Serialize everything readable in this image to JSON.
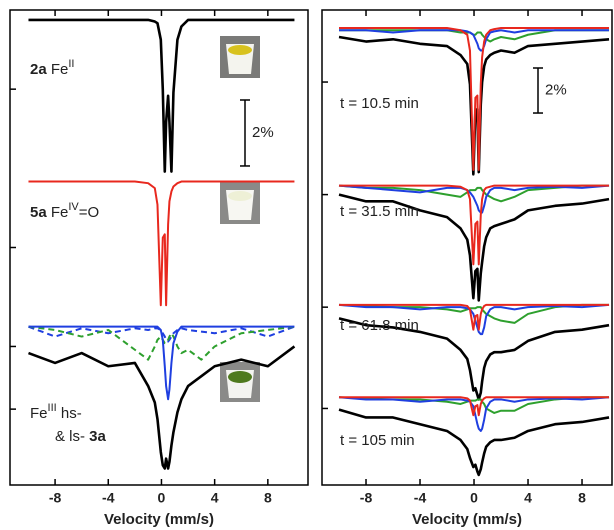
{
  "chart_data": [
    {
      "type": "line",
      "xlabel": "Velocity (mm/s)",
      "xlim": [
        -11.39,
        11.02
      ],
      "xticks": [
        -8,
        -4,
        0,
        4,
        8
      ],
      "ylim": [
        0,
        14.4
      ],
      "yticks": [
        12,
        7.2,
        4.2,
        2.3
      ],
      "x": [
        -10,
        -8,
        -6,
        -4,
        -2,
        -1,
        -0.5,
        -0.3,
        -0.05,
        0.1,
        0.25,
        0.35,
        0.5,
        0.6,
        0.75,
        0.9,
        1.2,
        1.5,
        2,
        3,
        4,
        6,
        8,
        10
      ],
      "series": [
        {
          "color": "#000000",
          "values": [
            14.1,
            14.1,
            14.1,
            14.1,
            14.1,
            14.1,
            14.05,
            14.0,
            13.5,
            12.0,
            9.5,
            11.0,
            11.8,
            11.0,
            9.5,
            11.9,
            13.5,
            13.9,
            14.1,
            14.1,
            14.1,
            14.1,
            14.1,
            14.1
          ]
        },
        {
          "color": "#e8281e",
          "values": [
            9.2,
            9.2,
            9.2,
            9.2,
            9.2,
            9.15,
            9.0,
            8.5,
            5.45,
            7.5,
            7.6,
            5.45,
            7.9,
            8.6,
            8.9,
            9.05,
            9.15,
            9.2,
            9.2,
            9.2,
            9.2,
            9.2,
            9.2,
            9.2
          ]
        },
        {
          "color": "#1f3fe0",
          "dash": true,
          "values": [
            4.8,
            4.5,
            4.75,
            4.6,
            4.75,
            4.7,
            4.75,
            4.75,
            4.7,
            4.6,
            4.5,
            4.4,
            4.35,
            4.4,
            4.5,
            4.6,
            4.7,
            4.75,
            4.7,
            4.65,
            4.6,
            4.75,
            4.5,
            4.8
          ]
        },
        {
          "color": "#2ea02e",
          "dash": true,
          "values": [
            4.8,
            4.7,
            4.5,
            4.7,
            4.1,
            3.8,
            4.2,
            4.4,
            4.5,
            4.4,
            4.3,
            4.3,
            4.4,
            4.5,
            4.6,
            4.5,
            4.2,
            4.0,
            4.1,
            3.8,
            4.2,
            4.6,
            4.7,
            4.8
          ]
        },
        {
          "color": "#1f3fe0",
          "values": [
            4.8,
            4.8,
            4.8,
            4.8,
            4.8,
            4.8,
            4.8,
            4.8,
            4.7,
            4.4,
            3.6,
            3.0,
            2.6,
            2.9,
            3.7,
            4.3,
            4.65,
            4.8,
            4.8,
            4.8,
            4.8,
            4.8,
            4.8,
            4.8
          ]
        },
        {
          "color": "#000000",
          "values": [
            4.0,
            3.7,
            4.0,
            3.6,
            3.7,
            3.0,
            2.5,
            2.0,
            1.0,
            0.6,
            0.5,
            0.8,
            0.5,
            0.7,
            1.2,
            1.6,
            2.2,
            2.6,
            3.0,
            3.3,
            3.6,
            3.8,
            3.6,
            4.2
          ]
        }
      ],
      "annotations": [
        [
          {
            "text": "2a",
            "style": "bold"
          },
          {
            "text": " Fe",
            "style": "normal"
          },
          {
            "text": "II",
            "style": "sup"
          }
        ],
        [
          {
            "text": "5a",
            "style": "bold"
          },
          {
            "text": " Fe",
            "style": "normal"
          },
          {
            "text": "IV",
            "style": "sup"
          },
          {
            "text": "=O",
            "style": "normal"
          }
        ],
        [
          {
            "text": "Fe",
            "style": "normal"
          },
          {
            "text": "III",
            "style": "sup"
          },
          {
            "text": " hs-",
            "style": "normal"
          }
        ],
        [
          {
            "text": "& ls- ",
            "style": "normal"
          },
          {
            "text": "3a",
            "style": "bold"
          }
        ]
      ],
      "scale_bar": {
        "value": 2,
        "label": "2%"
      }
    },
    {
      "type": "line",
      "xlabel": "Velocity (mm/s)",
      "xlim": [
        -11.26,
        10.22
      ],
      "xticks": [
        -8,
        -4,
        0,
        4,
        8
      ],
      "ylim": [
        0,
        21.1
      ],
      "yticks": [
        17.9,
        12.9,
        7.9,
        3.4
      ],
      "x": [
        -10,
        -8,
        -6,
        -4,
        -2,
        -1,
        -0.5,
        -0.3,
        -0.05,
        0.1,
        0.25,
        0.35,
        0.5,
        0.6,
        0.75,
        0.9,
        1.2,
        1.5,
        2,
        3,
        4,
        6,
        8,
        10
      ],
      "series": [
        {
          "color": "#000000",
          "values": [
            19.9,
            19.7,
            19.8,
            19.6,
            19.5,
            19.1,
            18.7,
            17.8,
            13.8,
            16.6,
            16.7,
            13.9,
            16.9,
            17.9,
            18.6,
            18.9,
            19.1,
            19.2,
            19.3,
            19.2,
            19.5,
            19.6,
            19.7,
            19.8
          ]
        },
        {
          "color": "#2ea02e",
          "values": [
            20.2,
            20.2,
            20.2,
            20.2,
            20.2,
            20.1,
            20.1,
            20.1,
            20.0,
            20.0,
            20.1,
            20.1,
            20.1,
            20.0,
            19.9,
            19.8,
            19.7,
            19.8,
            19.9,
            19.8,
            20.0,
            20.2,
            20.2,
            20.2
          ]
        },
        {
          "color": "#1f3fe0",
          "values": [
            20.2,
            20.2,
            20.1,
            20.2,
            20.2,
            20.2,
            20.15,
            20.1,
            20.0,
            19.8,
            19.6,
            19.4,
            19.3,
            19.3,
            19.5,
            19.8,
            20.1,
            20.15,
            20.2,
            20.1,
            20.2,
            20.2,
            20.2,
            20.2
          ]
        },
        {
          "color": "#e8281e",
          "values": [
            20.3,
            20.3,
            20.3,
            20.3,
            20.3,
            20.2,
            20.0,
            19.3,
            14.0,
            17.2,
            17.3,
            14.0,
            17.8,
            19.0,
            19.7,
            20.0,
            20.2,
            20.25,
            20.3,
            20.3,
            20.3,
            20.3,
            20.3,
            20.3
          ]
        },
        {
          "color": "#000000",
          "values": [
            12.9,
            12.6,
            12.6,
            12.2,
            11.9,
            11.4,
            10.9,
            10.2,
            8.3,
            9.5,
            9.6,
            8.2,
            9.4,
            9.9,
            10.6,
            11.0,
            11.4,
            11.5,
            11.6,
            11.8,
            12.2,
            12.4,
            12.5,
            12.7
          ]
        },
        {
          "color": "#2ea02e",
          "values": [
            13.3,
            13.2,
            13.2,
            13.1,
            12.9,
            12.8,
            13.0,
            13.1,
            13.1,
            13.1,
            13.2,
            13.2,
            13.2,
            13.1,
            13.0,
            12.9,
            12.8,
            12.7,
            12.6,
            12.8,
            13.1,
            13.2,
            13.3,
            13.3
          ]
        },
        {
          "color": "#1f3fe0",
          "values": [
            13.3,
            13.2,
            13.1,
            13.0,
            13.2,
            13.2,
            13.1,
            13.0,
            12.8,
            12.6,
            12.4,
            12.2,
            12.1,
            12.1,
            12.4,
            12.8,
            13.1,
            13.2,
            13.2,
            13.1,
            13.2,
            13.25,
            13.2,
            13.3
          ]
        },
        {
          "color": "#e8281e",
          "values": [
            13.3,
            13.3,
            13.3,
            13.3,
            13.3,
            13.25,
            13.1,
            12.7,
            9.8,
            11.6,
            11.7,
            9.8,
            12.0,
            12.7,
            13.1,
            13.2,
            13.25,
            13.3,
            13.3,
            13.3,
            13.3,
            13.3,
            13.3,
            13.3
          ]
        },
        {
          "color": "#000000",
          "values": [
            7.4,
            7.1,
            7.0,
            6.8,
            6.5,
            6.0,
            5.6,
            5.1,
            4.2,
            4.3,
            4.0,
            3.8,
            4.1,
            4.6,
            5.2,
            5.5,
            5.8,
            5.9,
            5.9,
            6.0,
            6.4,
            6.8,
            6.9,
            7.1
          ]
        },
        {
          "color": "#2ea02e",
          "values": [
            8.0,
            7.95,
            7.9,
            7.9,
            7.8,
            7.7,
            7.8,
            7.85,
            7.85,
            7.85,
            7.9,
            7.9,
            7.9,
            7.8,
            7.7,
            7.6,
            7.5,
            7.4,
            7.3,
            7.2,
            7.6,
            7.9,
            8.0,
            8.0
          ]
        },
        {
          "color": "#1f3fe0",
          "values": [
            8.0,
            7.9,
            7.9,
            7.8,
            7.9,
            7.9,
            7.85,
            7.8,
            7.6,
            7.3,
            7.0,
            6.8,
            6.7,
            6.7,
            7.0,
            7.5,
            7.8,
            7.9,
            7.9,
            7.8,
            7.9,
            7.95,
            7.9,
            8.0
          ]
        },
        {
          "color": "#e8281e",
          "values": [
            8.0,
            8.0,
            8.0,
            8.0,
            8.0,
            8.0,
            7.95,
            7.8,
            6.9,
            7.5,
            7.55,
            6.9,
            7.6,
            7.8,
            7.95,
            8.0,
            8.0,
            8.0,
            8.0,
            8.0,
            8.0,
            8.0,
            8.0,
            8.0
          ]
        },
        {
          "color": "#000000",
          "values": [
            3.35,
            3.0,
            3.0,
            2.7,
            2.4,
            2.0,
            1.6,
            1.2,
            0.8,
            0.9,
            0.6,
            0.45,
            0.7,
            1.0,
            1.4,
            1.7,
            1.9,
            2.0,
            2.0,
            2.1,
            2.4,
            2.7,
            2.8,
            3.0
          ]
        },
        {
          "color": "#2ea02e",
          "values": [
            3.9,
            3.85,
            3.8,
            3.8,
            3.7,
            3.6,
            3.7,
            3.75,
            3.75,
            3.75,
            3.8,
            3.8,
            3.8,
            3.7,
            3.6,
            3.4,
            3.3,
            3.2,
            3.3,
            3.3,
            3.6,
            3.8,
            3.9,
            3.9
          ]
        },
        {
          "color": "#1f3fe0",
          "values": [
            3.9,
            3.8,
            3.8,
            3.7,
            3.8,
            3.8,
            3.75,
            3.7,
            3.5,
            3.1,
            2.7,
            2.5,
            2.4,
            2.5,
            2.9,
            3.4,
            3.7,
            3.8,
            3.8,
            3.7,
            3.8,
            3.85,
            3.8,
            3.9
          ]
        },
        {
          "color": "#e8281e",
          "values": [
            3.9,
            3.9,
            3.9,
            3.9,
            3.9,
            3.9,
            3.85,
            3.75,
            3.1,
            3.5,
            3.55,
            3.1,
            3.6,
            3.75,
            3.85,
            3.9,
            3.9,
            3.9,
            3.9,
            3.9,
            3.9,
            3.9,
            3.9,
            3.9
          ]
        }
      ],
      "annotations": [
        [
          {
            "text": "t = 10.5 min",
            "style": "normal"
          }
        ],
        [
          {
            "text": "t = 31.5 min",
            "style": "normal"
          }
        ],
        [
          {
            "text": "t = 61.8 min",
            "style": "normal"
          }
        ],
        [
          {
            "text": "t = 105 min",
            "style": "normal"
          }
        ]
      ],
      "scale_bar": {
        "value": 2,
        "label": "2%"
      }
    }
  ]
}
